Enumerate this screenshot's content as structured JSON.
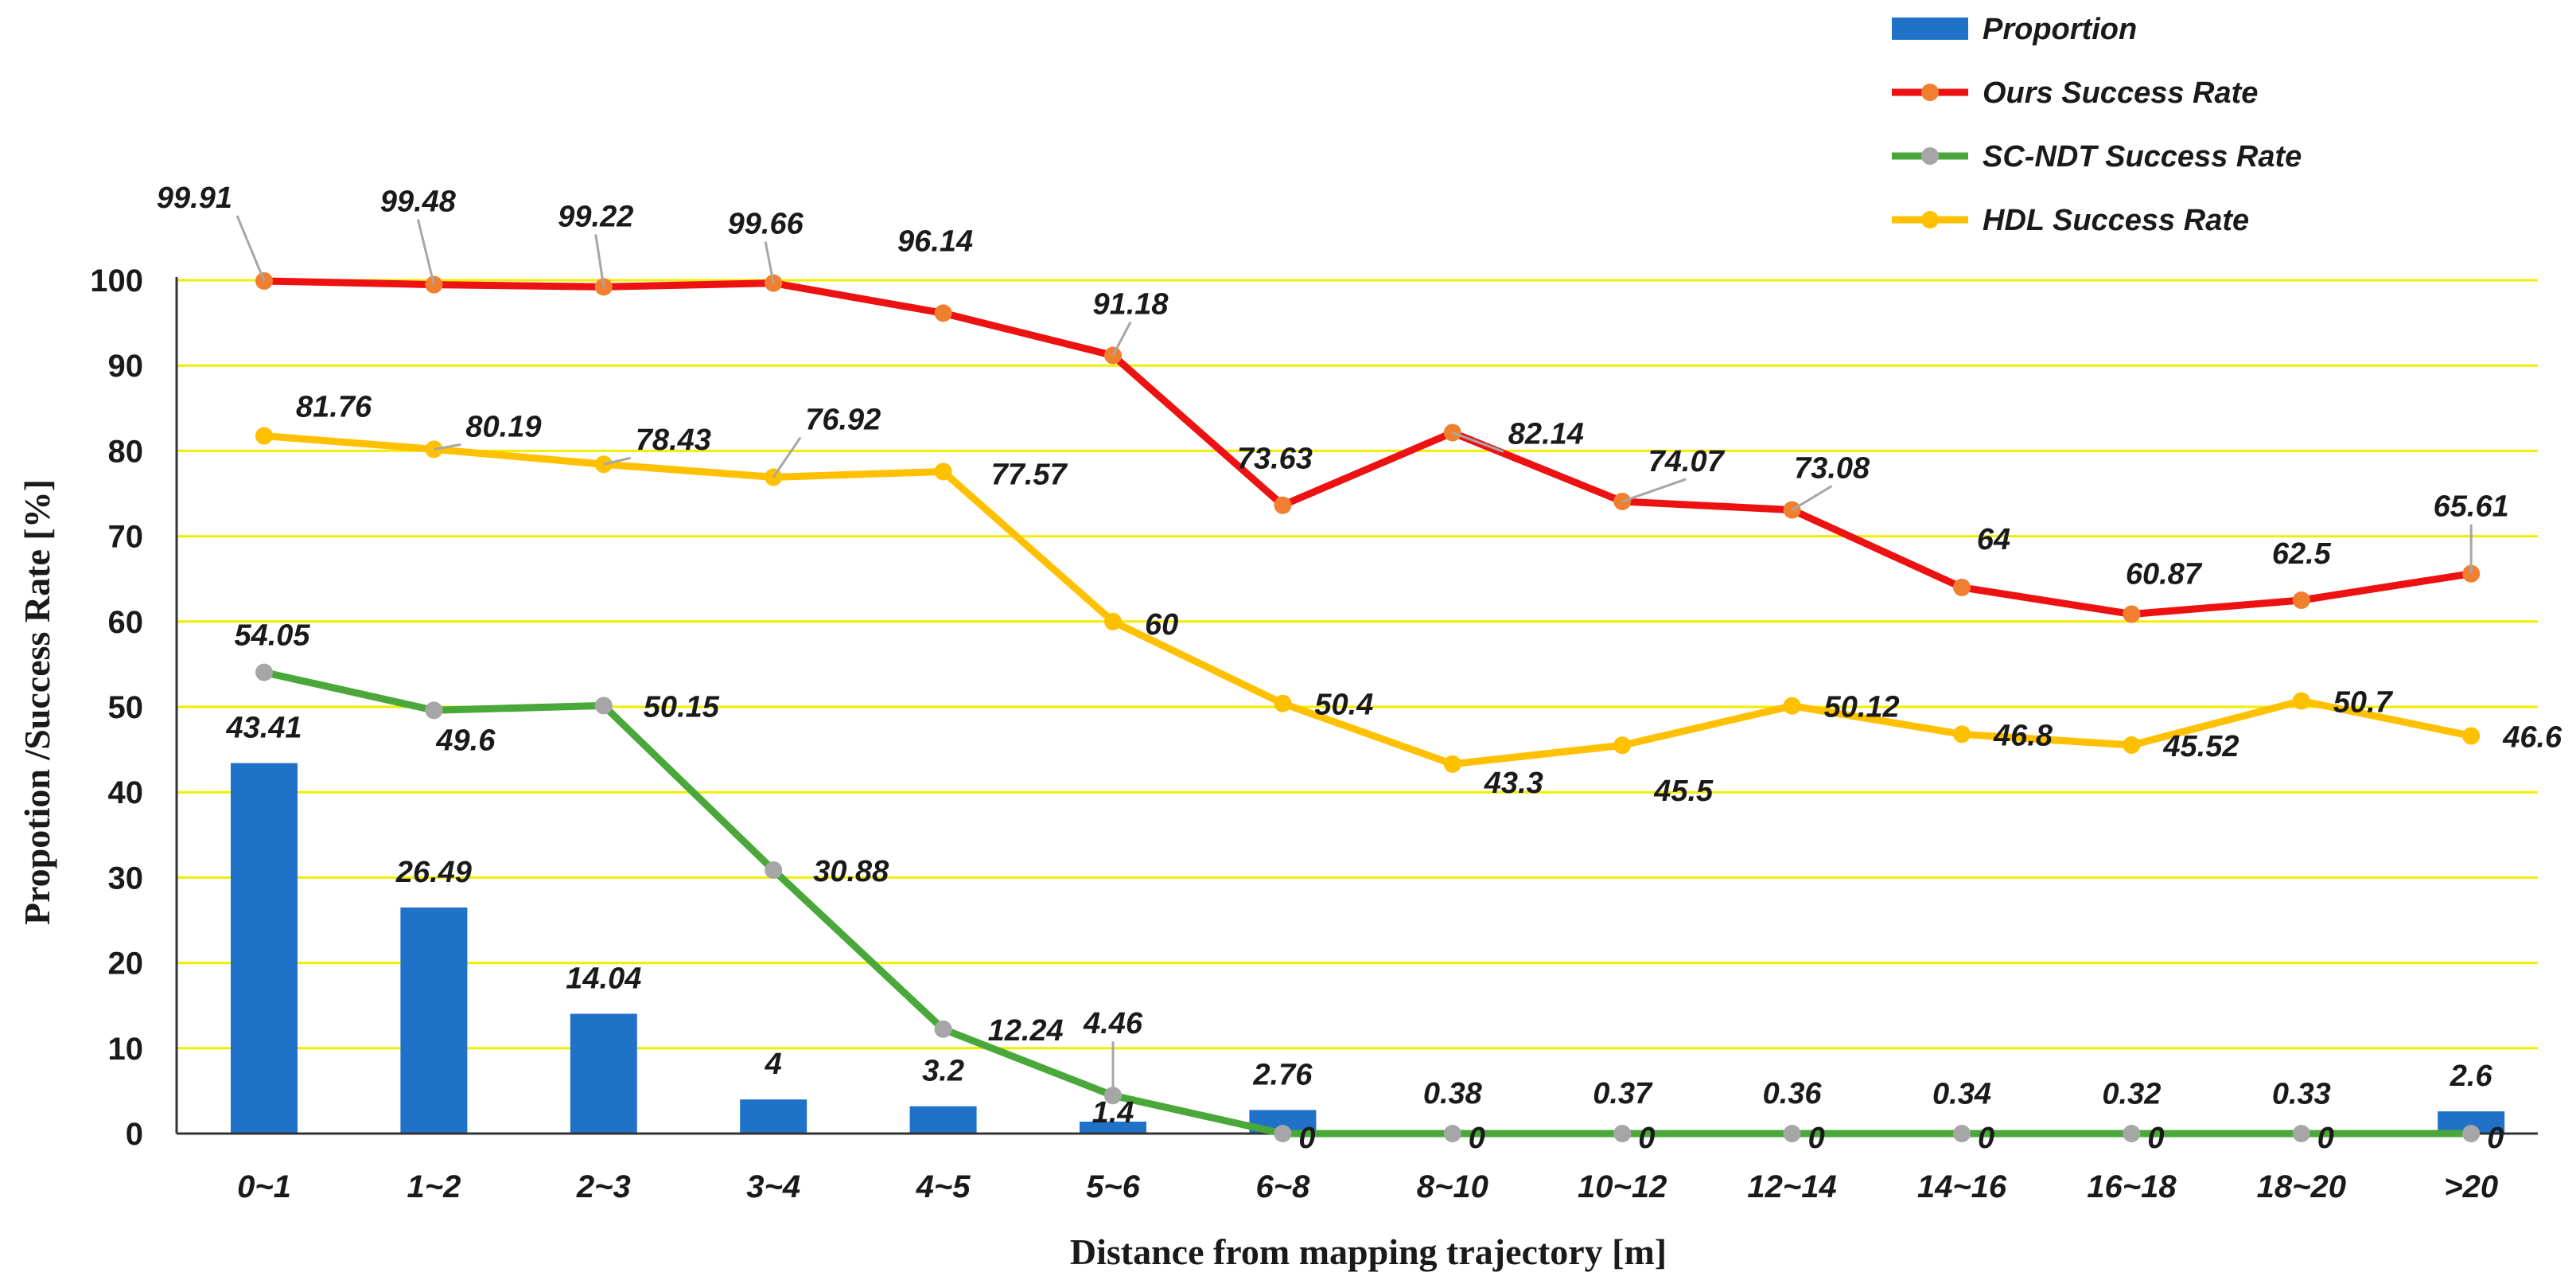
{
  "chart_data": {
    "type": "bar+line",
    "title": "",
    "xlabel": "Distance from mapping trajectory [m]",
    "ylabel": "Propotion /Success Rate [%]",
    "ylim": [
      0,
      100
    ],
    "yticks": [
      0,
      10,
      20,
      30,
      40,
      50,
      60,
      70,
      80,
      90,
      100
    ],
    "grid": true,
    "legend_position": "top-right",
    "categories": [
      "0~1",
      "1~2",
      "2~3",
      "3~4",
      "4~5",
      "5~6",
      "6~8",
      "8~10",
      "10~12",
      "12~14",
      "14~16",
      "16~18",
      "18~20",
      ">20"
    ],
    "bars": {
      "name": "Proportion",
      "color": "#1f72c8",
      "values": [
        43.41,
        26.49,
        14.04,
        4,
        3.2,
        1.4,
        2.76,
        0.38,
        0.37,
        0.36,
        0.34,
        0.32,
        0.33,
        2.6
      ]
    },
    "series": [
      {
        "name": "Ours Success Rate",
        "line_color": "#ee1111",
        "marker_color": "#f08030",
        "values": [
          99.91,
          99.48,
          99.22,
          99.66,
          96.14,
          91.18,
          73.63,
          82.14,
          74.07,
          73.08,
          64,
          60.87,
          62.5,
          65.61
        ]
      },
      {
        "name": "SC-NDT Success Rate",
        "line_color": "#4aa83a",
        "marker_color": "#a6a6a6",
        "values": [
          54.05,
          49.6,
          50.15,
          30.88,
          12.24,
          4.46,
          0,
          0,
          0,
          0,
          0,
          0,
          0,
          0
        ]
      },
      {
        "name": "HDL Success Rate",
        "line_color": "#ffc000",
        "marker_color": "#ffc000",
        "values": [
          81.76,
          80.19,
          78.43,
          76.92,
          77.57,
          60,
          50.4,
          43.3,
          45.5,
          50.12,
          46.8,
          45.52,
          50.7,
          46.6
        ]
      }
    ]
  }
}
